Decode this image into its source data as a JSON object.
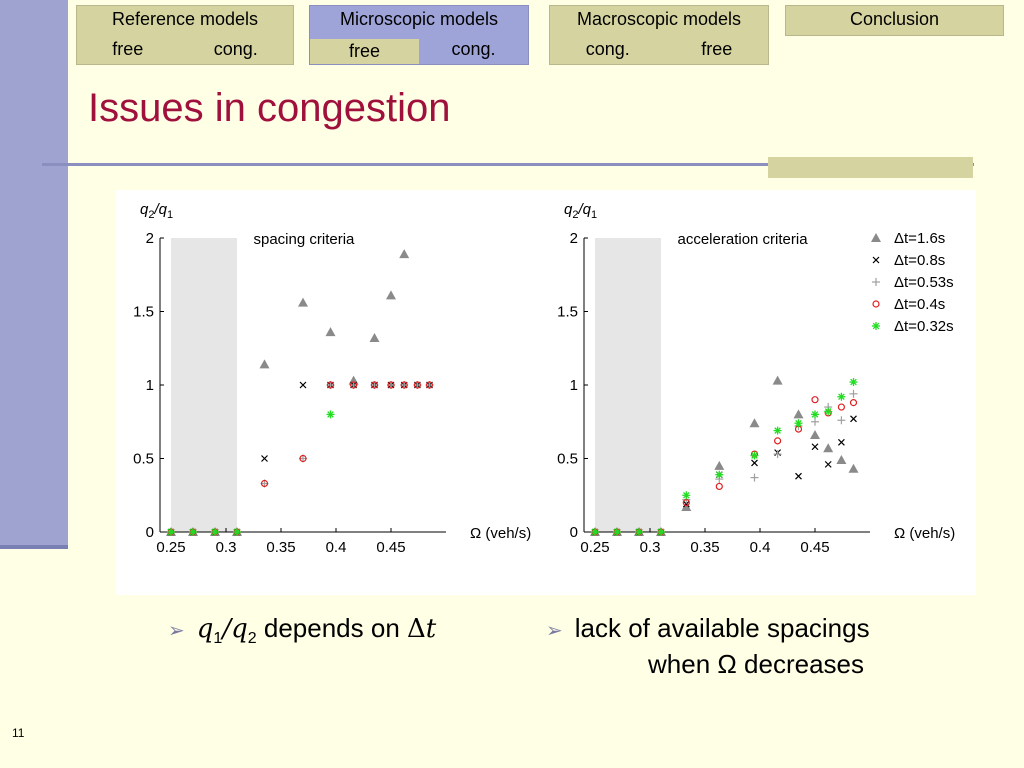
{
  "nav": [
    {
      "label": "Reference models",
      "sub": [
        "free",
        "cong."
      ]
    },
    {
      "label": "Microscopic models",
      "sub": [
        "free",
        "cong."
      ]
    },
    {
      "label": "Macroscopic models",
      "sub": [
        "cong.",
        "free"
      ]
    },
    {
      "label": "Conclusion"
    }
  ],
  "title": "Issues in congestion",
  "bullets": [
    {
      "text_a": "q",
      "sub_a": "1",
      "slash": "/",
      "text_b": "q",
      "sub_b": "2",
      "rest": " depends on ",
      "delta": "Δ",
      "t": "t"
    },
    {
      "line1": "lack of available spacings",
      "line2": "when Ω decreases"
    }
  ],
  "page_number": "11",
  "colors": {
    "triangle": "#8a8a8a",
    "cross": "#000000",
    "plus": "#a0a0a0",
    "circle": "#e02020",
    "star": "#22dd22",
    "shade": "#e6e6e6",
    "title": "#a0103c"
  },
  "chart_data": [
    {
      "type": "scatter",
      "annotation": "spacing criteria",
      "ylabel": "q2/q1",
      "xlabel": "Ω (veh/s)",
      "xlim": [
        0.24,
        0.5
      ],
      "ylim": [
        0,
        2
      ],
      "xticks": [
        "0.25",
        "0.3",
        "0.35",
        "0.4",
        "0.45"
      ],
      "yticks": [
        "0",
        "0.5",
        "1",
        "1.5",
        "2"
      ],
      "shaded_x": [
        0.25,
        0.31
      ],
      "series": [
        {
          "name": "Δt=1.6s",
          "marker": "triangle",
          "points": [
            [
              0.25,
              0
            ],
            [
              0.27,
              0
            ],
            [
              0.29,
              0
            ],
            [
              0.31,
              0
            ],
            [
              0.335,
              1.14
            ],
            [
              0.37,
              1.56
            ],
            [
              0.395,
              1.36
            ],
            [
              0.416,
              1.03
            ],
            [
              0.435,
              1.32
            ],
            [
              0.45,
              1.61
            ],
            [
              0.462,
              1.89
            ]
          ]
        },
        {
          "name": "Δt=0.8s",
          "marker": "cross",
          "points": [
            [
              0.25,
              0
            ],
            [
              0.27,
              0
            ],
            [
              0.29,
              0
            ],
            [
              0.31,
              0
            ],
            [
              0.335,
              0.5
            ],
            [
              0.37,
              1
            ],
            [
              0.395,
              1
            ],
            [
              0.416,
              1
            ],
            [
              0.435,
              1
            ],
            [
              0.45,
              1
            ],
            [
              0.462,
              1
            ],
            [
              0.474,
              1
            ],
            [
              0.485,
              1
            ]
          ]
        },
        {
          "name": "Δt=0.53s",
          "marker": "plus",
          "points": [
            [
              0.25,
              0
            ],
            [
              0.27,
              0
            ],
            [
              0.29,
              0
            ],
            [
              0.31,
              0
            ],
            [
              0.335,
              0.33
            ],
            [
              0.37,
              0.5
            ],
            [
              0.395,
              1
            ],
            [
              0.416,
              1
            ],
            [
              0.435,
              1
            ],
            [
              0.45,
              1
            ],
            [
              0.462,
              1
            ],
            [
              0.474,
              1
            ],
            [
              0.485,
              1
            ]
          ]
        },
        {
          "name": "Δt=0.4s",
          "marker": "circle",
          "points": [
            [
              0.25,
              0
            ],
            [
              0.27,
              0
            ],
            [
              0.29,
              0
            ],
            [
              0.31,
              0
            ],
            [
              0.335,
              0.33
            ],
            [
              0.37,
              0.5
            ],
            [
              0.395,
              1
            ],
            [
              0.416,
              1
            ],
            [
              0.435,
              1
            ],
            [
              0.45,
              1
            ],
            [
              0.462,
              1
            ],
            [
              0.474,
              1
            ],
            [
              0.485,
              1
            ]
          ]
        },
        {
          "name": "Δt=0.32s",
          "marker": "star",
          "points": [
            [
              0.25,
              0
            ],
            [
              0.27,
              0
            ],
            [
              0.29,
              0
            ],
            [
              0.31,
              0
            ],
            [
              0.395,
              0.8
            ]
          ]
        }
      ]
    },
    {
      "type": "scatter",
      "annotation": "acceleration criteria",
      "ylabel": "q2/q1",
      "xlabel": "Ω (veh/s)",
      "xlim": [
        0.24,
        0.5
      ],
      "ylim": [
        0,
        2
      ],
      "xticks": [
        "0.25",
        "0.3",
        "0.35",
        "0.4",
        "0.45"
      ],
      "yticks": [
        "0",
        "0.5",
        "1",
        "1.5",
        "2"
      ],
      "shaded_x": [
        0.25,
        0.31
      ],
      "legend": "top-right",
      "series": [
        {
          "name": "Δt=1.6s",
          "marker": "triangle",
          "points": [
            [
              0.25,
              0
            ],
            [
              0.27,
              0
            ],
            [
              0.29,
              0
            ],
            [
              0.31,
              0
            ],
            [
              0.333,
              0.17
            ],
            [
              0.363,
              0.45
            ],
            [
              0.395,
              0.74
            ],
            [
              0.416,
              1.03
            ],
            [
              0.435,
              0.8
            ],
            [
              0.45,
              0.66
            ],
            [
              0.462,
              0.57
            ],
            [
              0.474,
              0.49
            ],
            [
              0.485,
              0.43
            ]
          ]
        },
        {
          "name": "Δt=0.8s",
          "marker": "cross",
          "points": [
            [
              0.25,
              0
            ],
            [
              0.27,
              0
            ],
            [
              0.29,
              0
            ],
            [
              0.31,
              0
            ],
            [
              0.333,
              0.19
            ],
            [
              0.363,
              0.39
            ],
            [
              0.395,
              0.47
            ],
            [
              0.416,
              0.54
            ],
            [
              0.435,
              0.38
            ],
            [
              0.45,
              0.58
            ],
            [
              0.462,
              0.46
            ],
            [
              0.474,
              0.61
            ],
            [
              0.485,
              0.77
            ]
          ]
        },
        {
          "name": "Δt=0.53s",
          "marker": "plus",
          "points": [
            [
              0.25,
              0
            ],
            [
              0.27,
              0
            ],
            [
              0.29,
              0
            ],
            [
              0.31,
              0
            ],
            [
              0.333,
              0.22
            ],
            [
              0.363,
              0.36
            ],
            [
              0.395,
              0.37
            ],
            [
              0.416,
              0.53
            ],
            [
              0.435,
              0.72
            ],
            [
              0.45,
              0.75
            ],
            [
              0.462,
              0.85
            ],
            [
              0.474,
              0.76
            ],
            [
              0.485,
              0.94
            ]
          ]
        },
        {
          "name": "Δt=0.4s",
          "marker": "circle",
          "points": [
            [
              0.25,
              0
            ],
            [
              0.27,
              0
            ],
            [
              0.29,
              0
            ],
            [
              0.31,
              0
            ],
            [
              0.333,
              0.2
            ],
            [
              0.363,
              0.31
            ],
            [
              0.395,
              0.53
            ],
            [
              0.416,
              0.62
            ],
            [
              0.435,
              0.7
            ],
            [
              0.45,
              0.9
            ],
            [
              0.462,
              0.81
            ],
            [
              0.474,
              0.85
            ],
            [
              0.485,
              0.88
            ]
          ]
        },
        {
          "name": "Δt=0.32s",
          "marker": "star",
          "points": [
            [
              0.25,
              0
            ],
            [
              0.27,
              0
            ],
            [
              0.29,
              0
            ],
            [
              0.31,
              0
            ],
            [
              0.333,
              0.25
            ],
            [
              0.363,
              0.39
            ],
            [
              0.395,
              0.52
            ],
            [
              0.416,
              0.69
            ],
            [
              0.435,
              0.74
            ],
            [
              0.45,
              0.8
            ],
            [
              0.462,
              0.82
            ],
            [
              0.474,
              0.92
            ],
            [
              0.485,
              1.02
            ]
          ]
        }
      ]
    }
  ]
}
